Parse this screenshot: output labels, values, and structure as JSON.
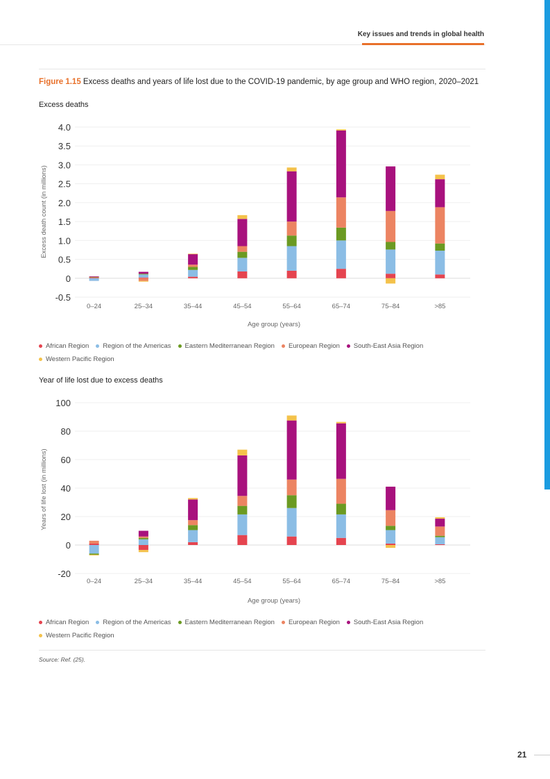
{
  "header": {
    "title": "Key issues and trends in global health"
  },
  "figure": {
    "number": "Figure 1.15",
    "title": "Excess deaths and years of life lost due to the COVID-19 pandemic, by age group and WHO region, 2020–2021"
  },
  "source": "Source: Ref. (25).",
  "page_number": "21",
  "chart_data": [
    {
      "type": "bar",
      "stacked": true,
      "title": "Excess deaths",
      "xlabel": "Age group (years)",
      "ylabel": "Excess death count (in millions)",
      "ylim": [
        -0.5,
        4.0
      ],
      "yticks": [
        {
          "v": 4.0,
          "l": "4.0"
        },
        {
          "v": 3.5,
          "l": "3.5"
        },
        {
          "v": 3.0,
          "l": "3.0"
        },
        {
          "v": 2.5,
          "l": "2.5"
        },
        {
          "v": 2.0,
          "l": "2.0"
        },
        {
          "v": 1.5,
          "l": "1.5"
        },
        {
          "v": 1.0,
          "l": "1.0"
        },
        {
          "v": 0.5,
          "l": "0.5"
        },
        {
          "v": 0,
          "l": "0"
        },
        {
          "v": -0.5,
          "l": "-0.5"
        }
      ],
      "categories": [
        "0–24",
        "25–34",
        "35–44",
        "45–54",
        "55–64",
        "65–74",
        "75–84",
        ">85"
      ],
      "series": [
        {
          "name": "African Region",
          "color": "#e5444f",
          "values": [
            0.02,
            0.02,
            0.04,
            0.18,
            0.2,
            0.25,
            0.12,
            0.1
          ]
        },
        {
          "name": "Region of the Americas",
          "color": "#8bbde5",
          "values": [
            -0.07,
            0.08,
            0.18,
            0.36,
            0.65,
            0.75,
            0.64,
            0.63
          ]
        },
        {
          "name": "Eastern Mediterranean Region",
          "color": "#6b9a22",
          "values": [
            0.01,
            0.02,
            0.08,
            0.16,
            0.28,
            0.34,
            0.2,
            0.19
          ]
        },
        {
          "name": "European Region",
          "color": "#ec8462",
          "values": [
            0.01,
            -0.07,
            0.06,
            0.15,
            0.37,
            0.8,
            0.82,
            0.96
          ]
        },
        {
          "name": "South-East Asia Region",
          "color": "#a8117d",
          "values": [
            0.01,
            0.05,
            0.28,
            0.72,
            1.33,
            1.77,
            1.18,
            0.74
          ]
        },
        {
          "name": "Western Pacific Region",
          "color": "#f4c24b",
          "values": [
            0,
            -0.02,
            0.01,
            0.1,
            0.1,
            0.03,
            -0.14,
            0.12
          ]
        }
      ],
      "legend": "bottom"
    },
    {
      "type": "bar",
      "stacked": true,
      "title": "Year of life lost due to excess deaths",
      "xlabel": "Age group (years)",
      "ylabel": "Years of life lost (in millions)",
      "ylim": [
        -20,
        100
      ],
      "yticks": [
        {
          "v": 100,
          "l": "100"
        },
        {
          "v": 80,
          "l": "80"
        },
        {
          "v": 60,
          "l": "60"
        },
        {
          "v": 40,
          "l": "40"
        },
        {
          "v": 20,
          "l": "20"
        },
        {
          "v": 0,
          "l": "0"
        },
        {
          "v": -20,
          "l": "-20"
        }
      ],
      "categories": [
        "0–24",
        "25–34",
        "35–44",
        "45–54",
        "55–64",
        "65–74",
        "75–84",
        ">85"
      ],
      "series": [
        {
          "name": "African Region",
          "color": "#e5444f",
          "values": [
            1,
            -3.5,
            2,
            7,
            6,
            5,
            1,
            0.5
          ]
        },
        {
          "name": "Region of the Americas",
          "color": "#8bbde5",
          "values": [
            -6,
            4,
            8.5,
            14.5,
            20,
            16.5,
            9.5,
            5
          ]
        },
        {
          "name": "Eastern Mediterranean Region",
          "color": "#6b9a22",
          "values": [
            -0.8,
            1,
            3.5,
            6,
            9,
            7.5,
            3,
            1
          ]
        },
        {
          "name": "European Region",
          "color": "#ec8462",
          "values": [
            2,
            1,
            3.5,
            7,
            11,
            17.5,
            11,
            6.5
          ]
        },
        {
          "name": "South-East Asia Region",
          "color": "#a8117d",
          "values": [
            0,
            4,
            14.5,
            28.5,
            41.5,
            39,
            16.5,
            5.5
          ]
        },
        {
          "name": "Western Pacific Region",
          "color": "#f4c24b",
          "values": [
            -0.5,
            -1.5,
            1,
            4,
            3.5,
            1,
            -2,
            1
          ]
        }
      ],
      "legend": "bottom"
    }
  ]
}
